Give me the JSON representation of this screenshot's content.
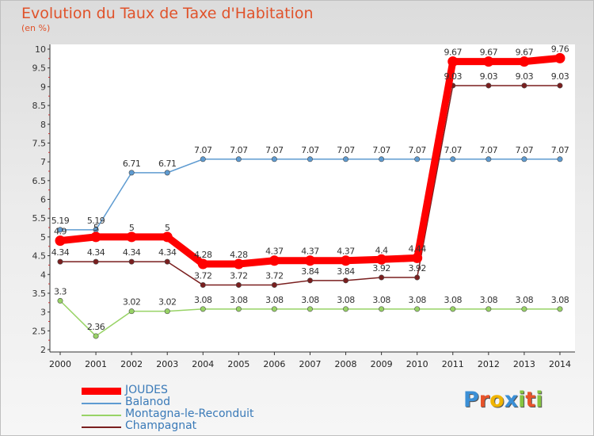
{
  "chart_data": {
    "type": "line",
    "title": "Evolution du Taux de Taxe d'Habitation",
    "ylabel": "(en %)",
    "x": [
      "2000",
      "2001",
      "2002",
      "2003",
      "2004",
      "2005",
      "2006",
      "2007",
      "2008",
      "2009",
      "2010",
      "2011",
      "2012",
      "2013",
      "2014"
    ],
    "ylim": [
      2,
      10
    ],
    "yticks": [
      "2",
      "2.5",
      "3",
      "3.5",
      "4",
      "4.5",
      "5",
      "5.5",
      "6",
      "6.5",
      "7",
      "7.5",
      "8",
      "8.5",
      "9",
      "9.5",
      "10"
    ],
    "legend_position": "bottom-left",
    "series": [
      {
        "name": "JOUDES",
        "color": "#ff0000",
        "values": [
          4.9,
          5,
          5,
          5,
          4.28,
          4.28,
          4.37,
          4.37,
          4.37,
          4.4,
          4.44,
          9.67,
          9.67,
          9.67,
          9.76
        ],
        "labels": [
          "4.9",
          "5",
          "5",
          "5",
          "4.28",
          "4.28",
          "4.37",
          "4.37",
          "4.37",
          "4.4",
          "4.44",
          "9.67",
          "9.67",
          "9.67",
          "9.76"
        ]
      },
      {
        "name": "Balanod",
        "color": "#5e9bd1",
        "values": [
          5.19,
          5.19,
          6.71,
          6.71,
          7.07,
          7.07,
          7.07,
          7.07,
          7.07,
          7.07,
          7.07,
          7.07,
          7.07,
          7.07,
          7.07
        ],
        "labels": [
          "5.19",
          "5.19",
          "6.71",
          "6.71",
          "7.07",
          "7.07",
          "7.07",
          "7.07",
          "7.07",
          "7.07",
          "7.07",
          "7.07",
          "7.07",
          "7.07",
          "7.07"
        ]
      },
      {
        "name": "Montagna-le-Reconduit",
        "color": "#98d366",
        "values": [
          3.3,
          2.36,
          3.02,
          3.02,
          3.08,
          3.08,
          3.08,
          3.08,
          3.08,
          3.08,
          3.08,
          3.08,
          3.08,
          3.08,
          3.08
        ],
        "labels": [
          "3.3",
          "2.36",
          "3.02",
          "3.02",
          "3.08",
          "3.08",
          "3.08",
          "3.08",
          "3.08",
          "3.08",
          "3.08",
          "3.08",
          "3.08",
          "3.08",
          "3.08"
        ]
      },
      {
        "name": "Champagnat",
        "color": "#7a1f1f",
        "values": [
          4.34,
          4.34,
          4.34,
          4.34,
          3.72,
          3.72,
          3.72,
          3.84,
          3.84,
          3.92,
          3.92,
          9.03,
          9.03,
          9.03,
          9.03
        ],
        "labels": [
          "4.34",
          "4.34",
          "4.34",
          "4.34",
          "3.72",
          "3.72",
          "3.72",
          "3.84",
          "3.84",
          "3.92",
          "3.92",
          "9.03",
          "9.03",
          "9.03",
          "9.03"
        ]
      }
    ]
  },
  "logo": {
    "letters": [
      "P",
      "r",
      "o",
      "x",
      "i",
      "t",
      "i"
    ],
    "colors": [
      "#3a8fd6",
      "#e8532a",
      "#f0b400",
      "#3a8fd6",
      "#86c440",
      "#e8532a",
      "#86c440"
    ]
  }
}
